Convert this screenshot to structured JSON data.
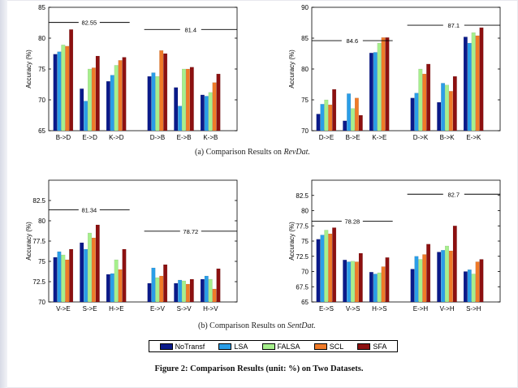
{
  "colors": {
    "NoTransf": "#0a1a8a",
    "LSA": "#2a9ee8",
    "FALSA": "#a6f08c",
    "SCL": "#f07a28",
    "SFA": "#8c1010"
  },
  "legend": [
    "NoTransf",
    "LSA",
    "FALSA",
    "SCL",
    "SFA"
  ],
  "captions": {
    "a_prefix": "(a) Comparison Results on ",
    "a_dataset": "RevDat.",
    "b_prefix": "(b) Comparison Results on ",
    "b_dataset": "SentDat.",
    "figure": "Figure 2: Comparison Results (unit: %) on Two Datasets."
  },
  "chart_data": [
    {
      "type": "bar",
      "panel": "top-left",
      "ylabel": "Accuracy (%)",
      "ylim": [
        65,
        85
      ],
      "yticks": [
        "65",
        "70",
        "75",
        "80",
        "85"
      ],
      "categories": [
        "B->D",
        "E->D",
        "K->D",
        "D->B",
        "E->B",
        "K->B"
      ],
      "group_gap_after": 2,
      "series": [
        {
          "name": "NoTransf",
          "values": [
            77.4,
            71.8,
            73.0,
            73.8,
            72.0,
            70.8
          ]
        },
        {
          "name": "LSA",
          "values": [
            77.8,
            69.8,
            74.0,
            74.4,
            69.0,
            70.6
          ]
        },
        {
          "name": "FALSA",
          "values": [
            78.9,
            75.0,
            75.6,
            73.8,
            75.0,
            71.2
          ]
        },
        {
          "name": "SCL",
          "values": [
            78.7,
            75.2,
            76.4,
            78.0,
            75.0,
            72.8
          ]
        },
        {
          "name": "SFA",
          "values": [
            81.4,
            77.1,
            76.9,
            77.5,
            75.3,
            74.2
          ]
        }
      ],
      "reference_lines": [
        {
          "value": 82.55,
          "label": "82.55",
          "from_group": 0,
          "to_group": 2
        },
        {
          "value": 81.4,
          "label": "81.4",
          "from_group": 3,
          "to_group": 5
        }
      ]
    },
    {
      "type": "bar",
      "panel": "top-right",
      "ylabel": "Accuracy (%)",
      "ylim": [
        70,
        90
      ],
      "yticks": [
        "70",
        "75",
        "80",
        "85",
        "90"
      ],
      "categories": [
        "D->E",
        "B->E",
        "K->E",
        "D->K",
        "B->K",
        "E->K"
      ],
      "group_gap_after": 2,
      "series": [
        {
          "name": "NoTransf",
          "values": [
            72.7,
            71.6,
            82.6,
            75.3,
            74.6,
            85.2
          ]
        },
        {
          "name": "LSA",
          "values": [
            74.3,
            76.0,
            82.7,
            76.1,
            77.7,
            84.2
          ]
        },
        {
          "name": "FALSA",
          "values": [
            75.0,
            73.6,
            84.2,
            80.0,
            77.4,
            85.9
          ]
        },
        {
          "name": "SCL",
          "values": [
            74.2,
            75.3,
            85.1,
            79.2,
            76.4,
            85.4
          ]
        },
        {
          "name": "SFA",
          "values": [
            76.7,
            72.5,
            85.1,
            80.8,
            78.8,
            86.7
          ]
        }
      ],
      "reference_lines": [
        {
          "value": 84.6,
          "label": "84.6",
          "from_group": 0,
          "to_group": 2
        },
        {
          "value": 87.1,
          "label": "87.1",
          "from_group": 3,
          "to_group": 5
        }
      ]
    },
    {
      "type": "bar",
      "panel": "bottom-left",
      "ylabel": "Accuracy (%)",
      "ylim": [
        70,
        85
      ],
      "yticks": [
        "70",
        "72.5",
        "75",
        "77.5",
        "80",
        "82.5"
      ],
      "categories": [
        "V->E",
        "S->E",
        "H->E",
        "E->V",
        "S->V",
        "H->V"
      ],
      "group_gap_after": 2,
      "series": [
        {
          "name": "NoTransf",
          "values": [
            75.5,
            77.3,
            73.4,
            72.3,
            72.3,
            72.8
          ]
        },
        {
          "name": "LSA",
          "values": [
            76.2,
            76.5,
            73.5,
            74.2,
            72.7,
            73.2
          ]
        },
        {
          "name": "FALSA",
          "values": [
            75.8,
            78.5,
            75.2,
            73.0,
            72.6,
            72.8
          ]
        },
        {
          "name": "SCL",
          "values": [
            75.2,
            77.9,
            74.0,
            73.2,
            72.2,
            71.6
          ]
        },
        {
          "name": "SFA",
          "values": [
            76.5,
            79.5,
            76.5,
            74.6,
            72.8,
            74.1
          ]
        }
      ],
      "reference_lines": [
        {
          "value": 81.34,
          "label": "81.34",
          "from_group": 0,
          "to_group": 2
        },
        {
          "value": 78.72,
          "label": "78.72",
          "from_group": 3,
          "to_group": 5
        }
      ]
    },
    {
      "type": "bar",
      "panel": "bottom-right",
      "ylabel": "Accuracy (%)",
      "ylim": [
        65,
        85
      ],
      "yticks": [
        "65",
        "67.5",
        "70",
        "72.5",
        "75",
        "77.5",
        "80",
        "82.5"
      ],
      "categories": [
        "E->S",
        "V->S",
        "H->S",
        "E->H",
        "V->H",
        "S->H"
      ],
      "group_gap_after": 2,
      "series": [
        {
          "name": "NoTransf",
          "values": [
            75.3,
            71.9,
            69.9,
            70.4,
            73.2,
            70.0
          ]
        },
        {
          "name": "LSA",
          "values": [
            76.0,
            71.6,
            69.6,
            72.5,
            73.5,
            70.3
          ]
        },
        {
          "name": "FALSA",
          "values": [
            76.8,
            71.7,
            69.8,
            72.0,
            74.2,
            69.6
          ]
        },
        {
          "name": "SCL",
          "values": [
            76.2,
            71.6,
            70.8,
            72.8,
            73.4,
            71.6
          ]
        },
        {
          "name": "SFA",
          "values": [
            77.2,
            73.0,
            72.3,
            74.5,
            77.5,
            72.0
          ]
        }
      ],
      "reference_lines": [
        {
          "value": 78.28,
          "label": "78.28",
          "from_group": 0,
          "to_group": 2
        },
        {
          "value": 82.7,
          "label": "82.7",
          "from_group": 3,
          "to_group": 5
        }
      ]
    }
  ]
}
